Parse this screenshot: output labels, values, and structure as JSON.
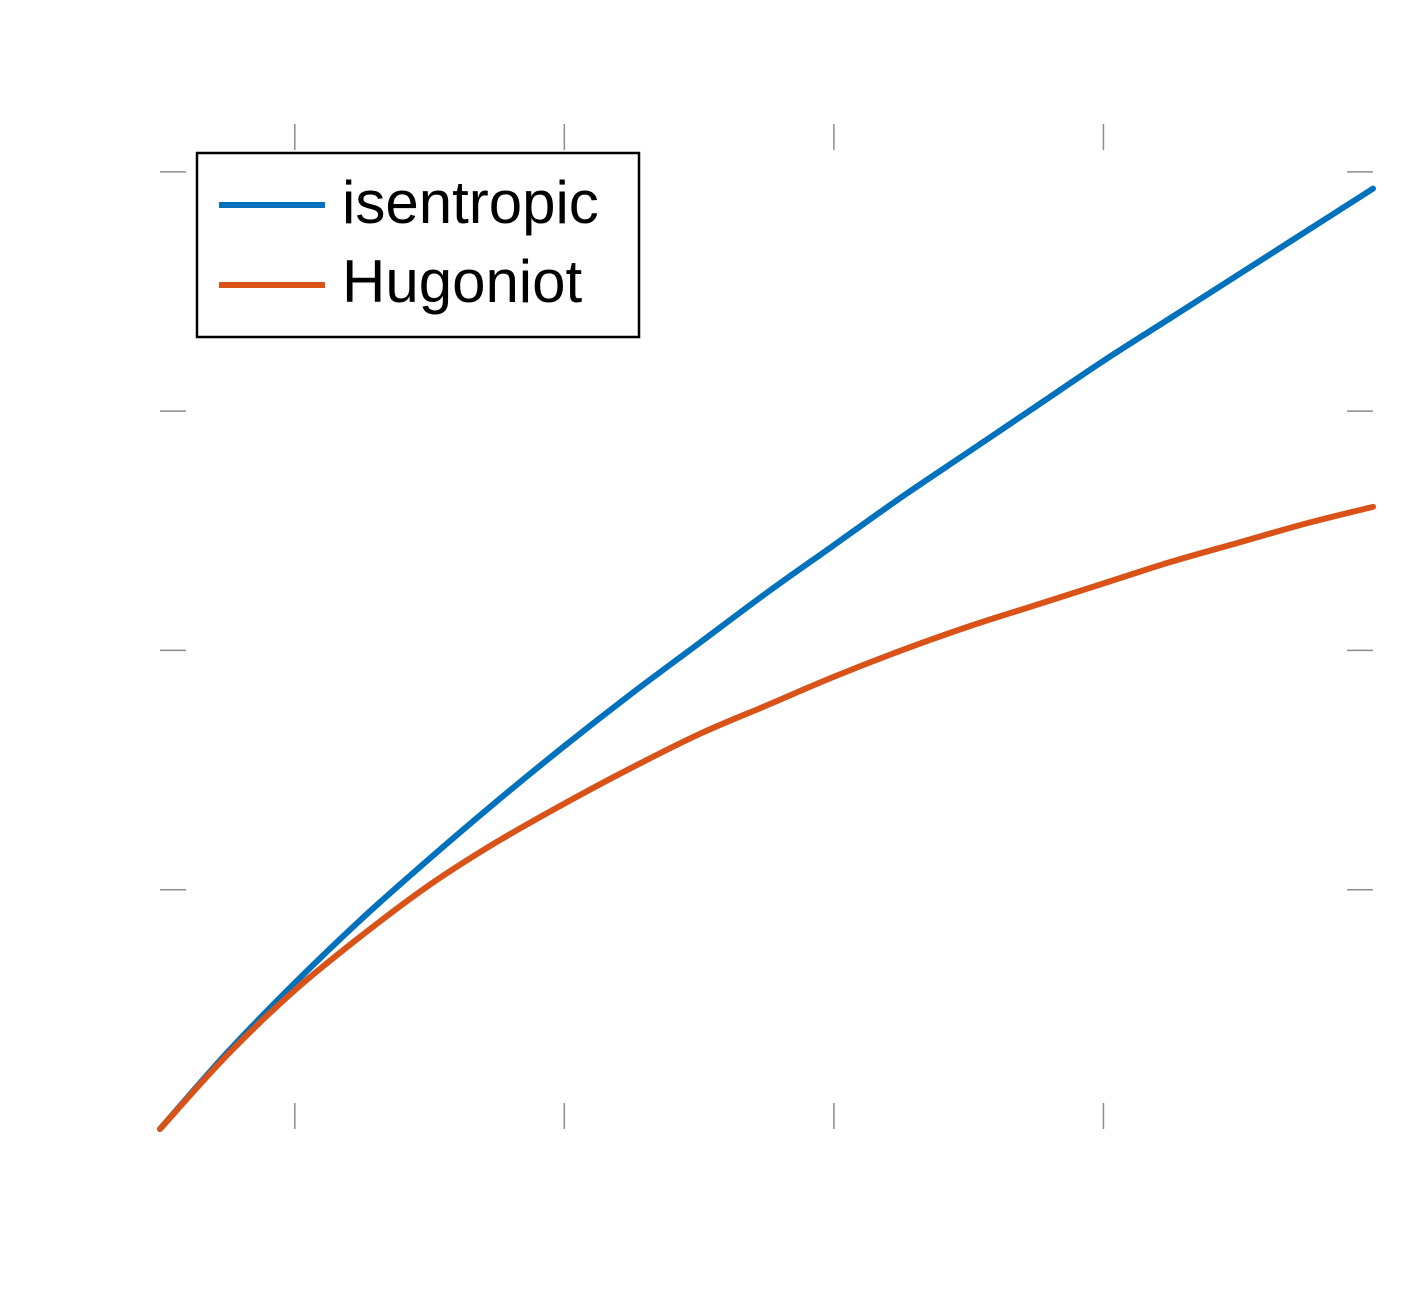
{
  "chart_data": {
    "type": "line",
    "title": "",
    "xlabel": "",
    "ylabel": "",
    "xlim": [
      1,
      5.5
    ],
    "ylim": [
      0,
      4.2
    ],
    "x_ticks": [
      1.5,
      2.5,
      3.5,
      4.5
    ],
    "y_ticks": [
      1,
      2,
      3,
      4
    ],
    "grid": false,
    "legend_position": "top-left",
    "series": [
      {
        "name": "isentropic",
        "color": "#0072BD",
        "x": [
          1,
          1.25,
          1.5,
          1.75,
          2,
          2.25,
          2.5,
          2.75,
          3,
          3.25,
          3.5,
          3.75,
          4,
          4.25,
          4.5,
          4.75,
          5,
          5.25,
          5.5
        ],
        "y": [
          0,
          0.32,
          0.61,
          0.88,
          1.13,
          1.37,
          1.6,
          1.82,
          2.03,
          2.24,
          2.44,
          2.64,
          2.83,
          3.02,
          3.21,
          3.39,
          3.57,
          3.75,
          3.93
        ]
      },
      {
        "name": "Hugoniot",
        "color": "#D95319",
        "x": [
          1,
          1.25,
          1.5,
          1.75,
          2,
          2.25,
          2.5,
          2.75,
          3,
          3.25,
          3.5,
          3.75,
          4,
          4.25,
          4.5,
          4.75,
          5,
          5.25,
          5.5
        ],
        "y": [
          0,
          0.31,
          0.58,
          0.81,
          1.02,
          1.2,
          1.36,
          1.51,
          1.65,
          1.77,
          1.89,
          2.0,
          2.1,
          2.19,
          2.28,
          2.37,
          2.45,
          2.53,
          2.6
        ]
      }
    ]
  }
}
